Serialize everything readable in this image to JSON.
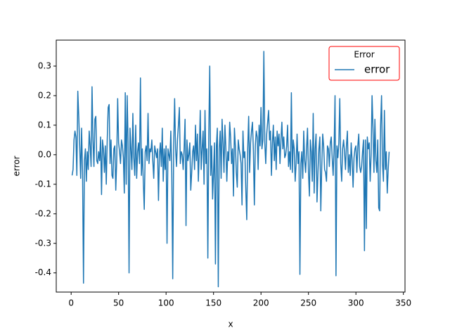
{
  "chart_data": {
    "type": "line",
    "xlabel": "x",
    "ylabel": "error",
    "x": [
      1,
      2,
      3,
      4,
      5,
      6,
      7,
      8,
      9,
      10,
      11,
      12,
      13,
      14,
      15,
      16,
      17,
      18,
      19,
      20,
      21,
      22,
      23,
      24,
      25,
      26,
      27,
      28,
      29,
      30,
      31,
      32,
      33,
      34,
      35,
      36,
      37,
      38,
      39,
      40,
      41,
      42,
      43,
      44,
      45,
      46,
      47,
      48,
      49,
      50,
      51,
      52,
      53,
      54,
      55,
      56,
      57,
      58,
      59,
      60,
      61,
      62,
      63,
      64,
      65,
      66,
      67,
      68,
      69,
      70,
      71,
      72,
      73,
      74,
      75,
      76,
      77,
      78,
      79,
      80,
      81,
      82,
      83,
      84,
      85,
      86,
      87,
      88,
      89,
      90,
      91,
      92,
      93,
      94,
      95,
      96,
      97,
      98,
      99,
      100,
      101,
      102,
      103,
      104,
      105,
      106,
      107,
      108,
      109,
      110,
      111,
      112,
      113,
      114,
      115,
      116,
      117,
      118,
      119,
      120,
      121,
      122,
      123,
      124,
      125,
      126,
      127,
      128,
      129,
      130,
      131,
      132,
      133,
      134,
      135,
      136,
      137,
      138,
      139,
      140,
      141,
      142,
      143,
      144,
      145,
      146,
      147,
      148,
      149,
      150,
      151,
      152,
      153,
      154,
      155,
      156,
      157,
      158,
      159,
      160,
      161,
      162,
      163,
      164,
      165,
      166,
      167,
      168,
      169,
      170,
      171,
      172,
      173,
      174,
      175,
      176,
      177,
      178,
      179,
      180,
      181,
      182,
      183,
      184,
      185,
      186,
      187,
      188,
      189,
      190,
      191,
      192,
      193,
      194,
      195,
      196,
      197,
      198,
      199,
      200,
      201,
      202,
      203,
      204,
      205,
      206,
      207,
      208,
      209,
      210,
      211,
      212,
      213,
      214,
      215,
      216,
      217,
      218,
      219,
      220,
      221,
      222,
      223,
      224,
      225,
      226,
      227,
      228,
      229,
      230,
      231,
      232,
      233,
      234,
      235,
      236,
      237,
      238,
      239,
      240,
      241,
      242,
      243,
      244,
      245,
      246,
      247,
      248,
      249,
      250,
      251,
      252,
      253,
      254,
      255,
      256,
      257,
      258,
      259,
      260,
      261,
      262,
      263,
      264,
      265,
      266,
      267,
      268,
      269,
      270,
      271,
      272,
      273,
      274,
      275,
      276,
      277,
      278,
      279,
      280,
      281,
      282,
      283,
      284,
      285,
      286,
      287,
      288,
      289,
      290,
      291,
      292,
      293,
      294,
      295,
      296,
      297,
      298,
      299,
      300,
      301,
      302,
      303,
      304,
      305,
      306,
      307,
      308,
      309,
      310,
      311,
      312,
      313,
      314,
      315,
      316,
      317,
      318,
      319,
      320,
      321,
      322,
      323,
      324,
      325,
      326,
      327,
      328,
      329,
      330,
      331,
      332,
      333,
      334,
      335
    ],
    "series": [
      {
        "name": "error",
        "color": "#1f77b4",
        "values": [
          -0.07,
          -0.05,
          0.05,
          0.08,
          0.06,
          -0.07,
          0.215,
          0.13,
          0.03,
          -0.08,
          0.09,
          -0.06,
          -0.435,
          -0.02,
          0.02,
          -0.09,
          0.01,
          -0.05,
          0.08,
          0.03,
          -0.04,
          0.23,
          0.05,
          -0.04,
          0.12,
          0.13,
          -0.02,
          -0.03,
          0.01,
          -0.02,
          0.06,
          -0.135,
          0.05,
          0.02,
          -0.06,
          0.03,
          -0.1,
          0.05,
          0.16,
          0.17,
          -0.03,
          0.05,
          -0.07,
          -0.08,
          0.02,
          0.03,
          -0.12,
          -0.02,
          0.19,
          0.04,
          0.01,
          -0.03,
          0.05,
          0.03,
          -0.01,
          -0.13,
          0.21,
          -0.1,
          0.2,
          0.04,
          -0.4,
          0.09,
          0.02,
          -0.05,
          0.14,
          -0.01,
          -0.07,
          0.1,
          -0.08,
          0.01,
          0.04,
          -0.03,
          0.26,
          -0.07,
          0.02,
          -0.09,
          -0.185,
          0.01,
          0.03,
          -0.02,
          0.14,
          -0.03,
          0.02,
          0.01,
          0.05,
          -0.02,
          -0.08,
          0.03,
          0.01,
          -0.01,
          0.02,
          -0.155,
          0.0,
          0.04,
          -0.04,
          0.09,
          -0.09,
          0.02,
          -0.05,
          0.03,
          -0.3,
          0.02,
          0.0,
          -0.02,
          0.08,
          -0.06,
          -0.42,
          0.03,
          0.19,
          0.02,
          -0.04,
          0.05,
          0.1,
          0.16,
          -0.03,
          0.01,
          0.0,
          -0.05,
          0.02,
          0.12,
          -0.24,
          0.05,
          -0.02,
          0.0,
          0.04,
          -0.12,
          -0.06,
          0.01,
          0.03,
          -0.05,
          0.1,
          -0.02,
          0.07,
          -0.09,
          0.01,
          0.15,
          -0.05,
          0.02,
          0.08,
          -0.1,
          0.15,
          -0.03,
          0.02,
          -0.35,
          0.07,
          0.3,
          -0.07,
          0.03,
          -0.15,
          -0.06,
          0.04,
          -0.37,
          0.03,
          0.09,
          -0.447,
          0.02,
          0.08,
          -0.08,
          0.12,
          0.04,
          -0.06,
          0.1,
          0.02,
          -0.09,
          0.01,
          -0.02,
          0.11,
          0.06,
          -0.03,
          0.02,
          -0.14,
          0.09,
          0.03,
          -0.06,
          -0.11,
          0.05,
          0.02,
          0.0,
          -0.03,
          -0.17,
          0.08,
          -0.01,
          0.01,
          -0.12,
          -0.22,
          0.02,
          0.13,
          -0.06,
          0.04,
          0.08,
          0.11,
          0.01,
          -0.17,
          0.03,
          0.08,
          0.06,
          -0.05,
          0.1,
          0.03,
          0.16,
          0.02,
          0.05,
          0.35,
          0.04,
          -0.03,
          0.07,
          0.11,
          0.15,
          0.05,
          0.08,
          -0.07,
          0.04,
          0.1,
          -0.02,
          0.06,
          -0.05,
          0.08,
          0.03,
          0.07,
          -0.03,
          0.05,
          0.11,
          0.02,
          0.06,
          -0.01,
          0.0,
          0.03,
          0.1,
          -0.04,
          0.01,
          -0.05,
          0.21,
          -0.06,
          0.05,
          0.02,
          -0.09,
          -0.03,
          0.07,
          -0.03,
          0.01,
          -0.405,
          -0.03,
          0.01,
          -0.08,
          0.08,
          -0.02,
          -0.06,
          0.02,
          0.09,
          -0.06,
          -0.14,
          0.05,
          0.01,
          -0.09,
          0.14,
          -0.13,
          0.02,
          0.07,
          -0.16,
          -0.06,
          0.02,
          0.06,
          -0.19,
          -0.04,
          0.07,
          0.03,
          -0.05,
          -0.06,
          -0.09,
          0.03,
          0.02,
          -0.04,
          0.04,
          0.06,
          -0.01,
          -0.07,
          0.02,
          0.2,
          -0.41,
          0.03,
          -0.01,
          0.04,
          0.19,
          -0.03,
          -0.09,
          0.02,
          0.05,
          0.01,
          -0.05,
          0.03,
          0.08,
          -0.06,
          0.0,
          -0.07,
          0.04,
          -0.02,
          -0.11,
          -0.01,
          0.02,
          0.03,
          -0.06,
          0.03,
          0.07,
          -0.04,
          -0.06,
          -0.04,
          0.01,
          0.05,
          -0.325,
          0.05,
          -0.25,
          0.06,
          0.02,
          0.04,
          -0.09,
          0.0,
          0.2,
          0.09,
          -0.06,
          0.12,
          -0.02,
          -0.06,
          0.05,
          -0.18,
          -0.19,
          0.1,
          0.2,
          -0.03,
          -0.09,
          0.15,
          -0.05,
          0.01,
          -0.13,
          -0.05,
          0.01
        ]
      }
    ],
    "xlim": [
      -15.7,
      351.7
    ],
    "xticks": [
      0,
      50,
      100,
      150,
      200,
      250,
      300,
      350
    ],
    "ylim": [
      -0.465,
      0.388
    ],
    "yticks": [
      -0.4,
      -0.3,
      -0.2,
      -0.1,
      {
        "value": 0,
        "label": "0.0"
      },
      0.1,
      0.2,
      0.3
    ],
    "legend": {
      "title": "Error",
      "loc": "upper right",
      "edgecolor": "#ff0000"
    }
  }
}
